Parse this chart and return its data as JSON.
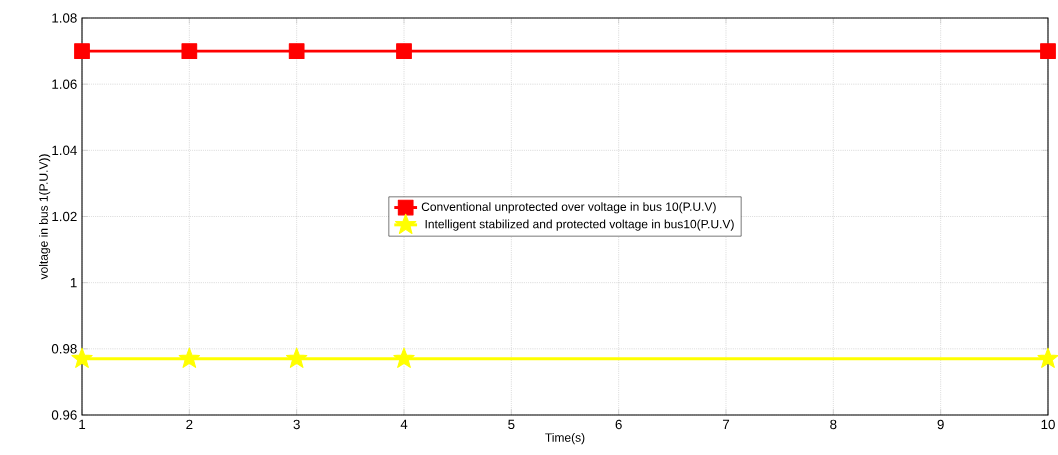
{
  "chart_data": {
    "type": "line",
    "xlabel": "Time(s)",
    "ylabel": "voltage in bus 1(P.U.V))",
    "x": [
      1,
      2,
      3,
      4,
      10
    ],
    "series": [
      {
        "name": "Conventional unprotected over voltage in bus 10(P.U.V)",
        "color": "#ff0000",
        "marker": "square",
        "values": [
          1.07,
          1.07,
          1.07,
          1.07,
          1.07
        ]
      },
      {
        "name": "  Intelligent stabilized and protected voltage in bus10(P.U.V)",
        "color": "#ffff00",
        "marker": "star",
        "values": [
          0.977,
          0.977,
          0.977,
          0.977,
          0.977
        ]
      }
    ],
    "xlim": [
      1,
      10
    ],
    "xticks": [
      1,
      2,
      3,
      4,
      5,
      6,
      7,
      8,
      9,
      10
    ],
    "ylim": [
      0.96,
      1.08
    ],
    "yticks": [
      0.96,
      0.98,
      1,
      1.02,
      1.04,
      1.06,
      1.08
    ],
    "grid": true,
    "legend": "center"
  }
}
